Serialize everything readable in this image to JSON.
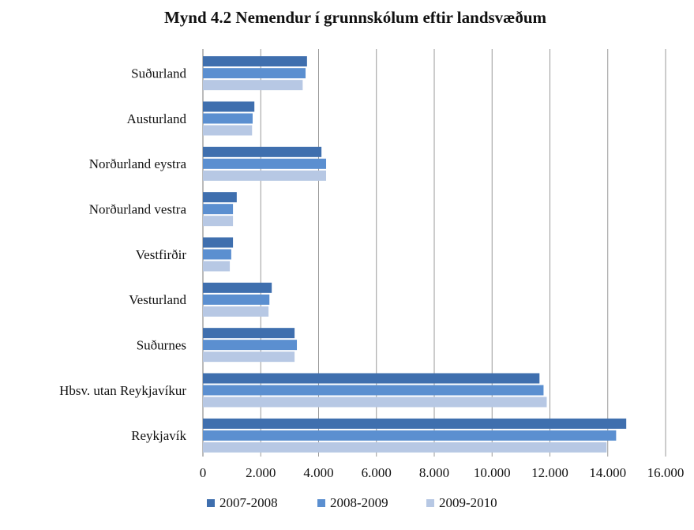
{
  "chart_data": {
    "type": "bar",
    "orientation": "horizontal",
    "title": "Mynd 4.2 Nemendur í grunnskólum eftir landsvæðum",
    "categories": [
      "Suðurland",
      "Austurland",
      "Norðurland eystra",
      "Norðurland vestra",
      "Vestfirðir",
      "Vesturland",
      "Suðurnes",
      "Hbsv. utan Reykjavíkur",
      "Reykjavík"
    ],
    "series": [
      {
        "name": "2007-2008",
        "color": "#3f6fae",
        "values": [
          3600,
          1780,
          4100,
          1170,
          1040,
          2380,
          3170,
          11640,
          14640
        ]
      },
      {
        "name": "2008-2009",
        "color": "#5b8fd0",
        "values": [
          3550,
          1720,
          4260,
          1040,
          980,
          2300,
          3250,
          11780,
          14290
        ]
      },
      {
        "name": "2009-2010",
        "color": "#b7c8e4",
        "values": [
          3450,
          1700,
          4260,
          1040,
          930,
          2270,
          3170,
          11890,
          13960
        ]
      }
    ],
    "xlim": [
      0,
      16000
    ],
    "xticks": [
      0,
      {
        "value": 2000,
        "label": "2.000"
      },
      {
        "value": 4000,
        "label": "4.000"
      },
      {
        "value": 6000,
        "label": "6.000"
      },
      {
        "value": 8000,
        "label": "8.000"
      },
      {
        "value": 10000,
        "label": "10.000"
      },
      {
        "value": 12000,
        "label": "12.000"
      },
      {
        "value": 14000,
        "label": "14.000"
      },
      {
        "value": 16000,
        "label": "16.000"
      }
    ],
    "grid": true,
    "legend": "bottom"
  }
}
